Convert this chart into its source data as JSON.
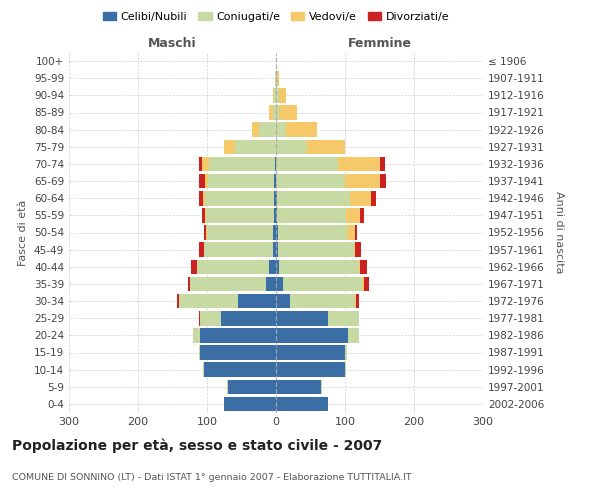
{
  "age_groups": [
    "0-4",
    "5-9",
    "10-14",
    "15-19",
    "20-24",
    "25-29",
    "30-34",
    "35-39",
    "40-44",
    "45-49",
    "50-54",
    "55-59",
    "60-64",
    "65-69",
    "70-74",
    "75-79",
    "80-84",
    "85-89",
    "90-94",
    "95-99",
    "100+"
  ],
  "birth_years": [
    "2002-2006",
    "1997-2001",
    "1992-1996",
    "1987-1991",
    "1982-1986",
    "1977-1981",
    "1972-1976",
    "1967-1971",
    "1962-1966",
    "1957-1961",
    "1952-1956",
    "1947-1951",
    "1942-1946",
    "1937-1941",
    "1932-1936",
    "1927-1931",
    "1922-1926",
    "1917-1921",
    "1912-1916",
    "1907-1911",
    "≤ 1906"
  ],
  "males": {
    "celibi": [
      75,
      70,
      105,
      110,
      110,
      80,
      55,
      15,
      10,
      5,
      5,
      3,
      3,
      3,
      2,
      0,
      0,
      0,
      0,
      0,
      0
    ],
    "coniugati": [
      1,
      1,
      1,
      2,
      10,
      30,
      85,
      110,
      105,
      100,
      95,
      98,
      100,
      95,
      95,
      60,
      25,
      5,
      3,
      1,
      0
    ],
    "vedovi": [
      0,
      0,
      0,
      0,
      0,
      0,
      0,
      0,
      0,
      0,
      1,
      2,
      3,
      5,
      10,
      15,
      10,
      5,
      2,
      0,
      0
    ],
    "divorziati": [
      0,
      0,
      0,
      0,
      0,
      1,
      3,
      2,
      8,
      7,
      3,
      4,
      5,
      8,
      5,
      0,
      0,
      0,
      0,
      0,
      0
    ]
  },
  "females": {
    "nubili": [
      75,
      65,
      100,
      100,
      105,
      75,
      20,
      10,
      5,
      3,
      3,
      2,
      2,
      0,
      0,
      0,
      0,
      0,
      0,
      0,
      0
    ],
    "coniugate": [
      1,
      1,
      1,
      3,
      15,
      45,
      95,
      115,
      115,
      110,
      100,
      100,
      105,
      100,
      90,
      45,
      15,
      5,
      5,
      2,
      0
    ],
    "vedove": [
      0,
      0,
      0,
      0,
      0,
      1,
      1,
      2,
      2,
      2,
      12,
      20,
      30,
      50,
      60,
      55,
      45,
      25,
      10,
      3,
      0
    ],
    "divorziate": [
      0,
      0,
      0,
      0,
      1,
      0,
      5,
      8,
      10,
      8,
      3,
      5,
      8,
      10,
      8,
      0,
      0,
      0,
      0,
      0,
      0
    ]
  },
  "colors": {
    "celibi_nubili": "#3a6ea5",
    "coniugati": "#c8daa4",
    "vedovi": "#f5c96a",
    "divorziati": "#cc2222"
  },
  "title": "Popolazione per età, sesso e stato civile - 2007",
  "subtitle": "COMUNE DI SONNINO (LT) - Dati ISTAT 1° gennaio 2007 - Elaborazione TUTTITALIA.IT",
  "xlabel_left": "Maschi",
  "xlabel_right": "Femmine",
  "ylabel_left": "Fasce di età",
  "ylabel_right": "Anni di nascita",
  "xlim": 300,
  "legend_labels": [
    "Celibi/Nubili",
    "Coniugati/e",
    "Vedovi/e",
    "Divorziati/e"
  ],
  "background_color": "#ffffff",
  "grid_color": "#cccccc"
}
